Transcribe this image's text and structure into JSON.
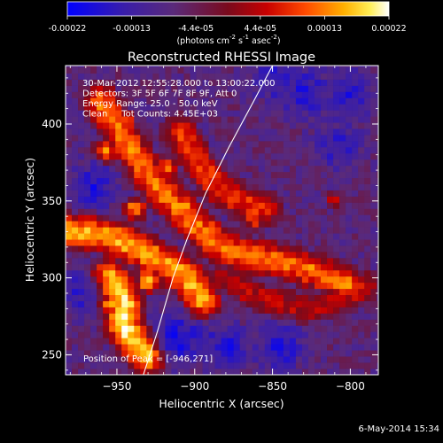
{
  "colorbar": {
    "ticks": [
      "-0.00022",
      "-0.00013",
      "-4.4e-05",
      "4.4e-05",
      "0.00013",
      "0.00022"
    ],
    "unit_html": "(photons cm<tspan dy=\"-5\" font-size=\"7\">-2</tspan><tspan dy=\"5\"> s</tspan><tspan dy=\"-5\" font-size=\"7\">-1</tspan><tspan dy=\"5\"> asec</tspan><tspan dy=\"-5\" font-size=\"7\">-2</tspan><tspan dy=\"5\">)</tspan>"
  },
  "chart_data": {
    "type": "heatmap",
    "title": "Reconstructed RHESSI Image",
    "xlabel": "Heliocentric X (arcsec)",
    "ylabel": "Heliocentric Y (arcsec)",
    "xlim": [
      -983,
      -782
    ],
    "ylim": [
      237,
      438
    ],
    "xticks": [
      -950,
      -900,
      -850,
      -800
    ],
    "yticks": [
      250,
      300,
      350,
      400
    ],
    "xtick_labels": [
      "−950",
      "−900",
      "−850",
      "−800"
    ],
    "ytick_labels": [
      "250",
      "300",
      "350",
      "400"
    ],
    "colorscale_range": [
      -0.00022,
      0.00022
    ],
    "colormap": "rhessi-blue-purple-red-yellow-white",
    "annotations": [
      "30-Mar-2012 12:55:28.000 to 13:00:22.000",
      "Detectors: 3F 5F 6F 7F 8F 9F, Att 0",
      "Energy Range: 25.0 - 50.0 keV",
      "Clean     Tot Counts: 4.45E+03"
    ],
    "peak_label": "Position of Peak = [-946,271]",
    "peak": [
      -946,
      271
    ],
    "limb_curve": [
      [
        -933,
        237
      ],
      [
        -924,
        265
      ],
      [
        -914,
        300
      ],
      [
        -905,
        325
      ],
      [
        -893,
        355
      ],
      [
        -878,
        385
      ],
      [
        -862,
        415
      ],
      [
        -850,
        438
      ]
    ],
    "emission_ridges": [
      {
        "points": [
          [
            -960,
            415
          ],
          [
            -945,
            390
          ],
          [
            -932,
            370
          ],
          [
            -920,
            355
          ],
          [
            -905,
            340
          ],
          [
            -890,
            325
          ],
          [
            -870,
            315
          ],
          [
            -850,
            312
          ],
          [
            -825,
            305
          ],
          [
            -800,
            295
          ]
        ],
        "intensity": 0.78
      },
      {
        "points": [
          [
            -983,
            330
          ],
          [
            -965,
            330
          ],
          [
            -950,
            325
          ],
          [
            -935,
            318
          ],
          [
            -920,
            310
          ],
          [
            -905,
            300
          ],
          [
            -895,
            285
          ]
        ],
        "intensity": 0.85
      },
      {
        "points": [
          [
            -955,
            300
          ],
          [
            -946,
            285
          ],
          [
            -946,
            271
          ],
          [
            -940,
            260
          ],
          [
            -930,
            250
          ]
        ],
        "intensity": 0.95
      },
      {
        "points": [
          [
            -910,
            395
          ],
          [
            -895,
            372
          ],
          [
            -885,
            358
          ],
          [
            -870,
            350
          ],
          [
            -855,
            345
          ]
        ],
        "intensity": 0.7
      },
      {
        "points": [
          [
            -880,
            300
          ],
          [
            -865,
            290
          ],
          [
            -850,
            285
          ],
          [
            -830,
            280
          ],
          [
            -810,
            285
          ],
          [
            -790,
            295
          ]
        ],
        "intensity": 0.6
      }
    ],
    "hotspots": [
      {
        "x": -946,
        "y": 271,
        "intensity": 1.0
      },
      {
        "x": -955,
        "y": 283,
        "intensity": 0.92
      },
      {
        "x": -930,
        "y": 298,
        "intensity": 0.9
      },
      {
        "x": -938,
        "y": 345,
        "intensity": 0.85
      },
      {
        "x": -958,
        "y": 382,
        "intensity": 0.85
      },
      {
        "x": -945,
        "y": 402,
        "intensity": 0.78
      },
      {
        "x": -918,
        "y": 372,
        "intensity": 0.8
      },
      {
        "x": -905,
        "y": 348,
        "intensity": 0.8
      },
      {
        "x": -888,
        "y": 332,
        "intensity": 0.75
      },
      {
        "x": -862,
        "y": 338,
        "intensity": 0.7
      },
      {
        "x": -830,
        "y": 300,
        "intensity": 0.65
      },
      {
        "x": -810,
        "y": 350,
        "intensity": 0.6
      }
    ],
    "cold_spots": [
      {
        "x": -910,
        "y": 260,
        "intensity": 0.05
      },
      {
        "x": -880,
        "y": 255,
        "intensity": 0.1
      },
      {
        "x": -845,
        "y": 255,
        "intensity": 0.1
      },
      {
        "x": -830,
        "y": 420,
        "intensity": 0.1
      },
      {
        "x": -800,
        "y": 420,
        "intensity": 0.12
      },
      {
        "x": -808,
        "y": 385,
        "intensity": 0.15
      },
      {
        "x": -965,
        "y": 360,
        "intensity": 0.1
      },
      {
        "x": -975,
        "y": 290,
        "intensity": 0.15
      },
      {
        "x": -850,
        "y": 430,
        "intensity": 0.15
      }
    ]
  },
  "footer": {
    "date": "6-May-2014 15:34"
  }
}
